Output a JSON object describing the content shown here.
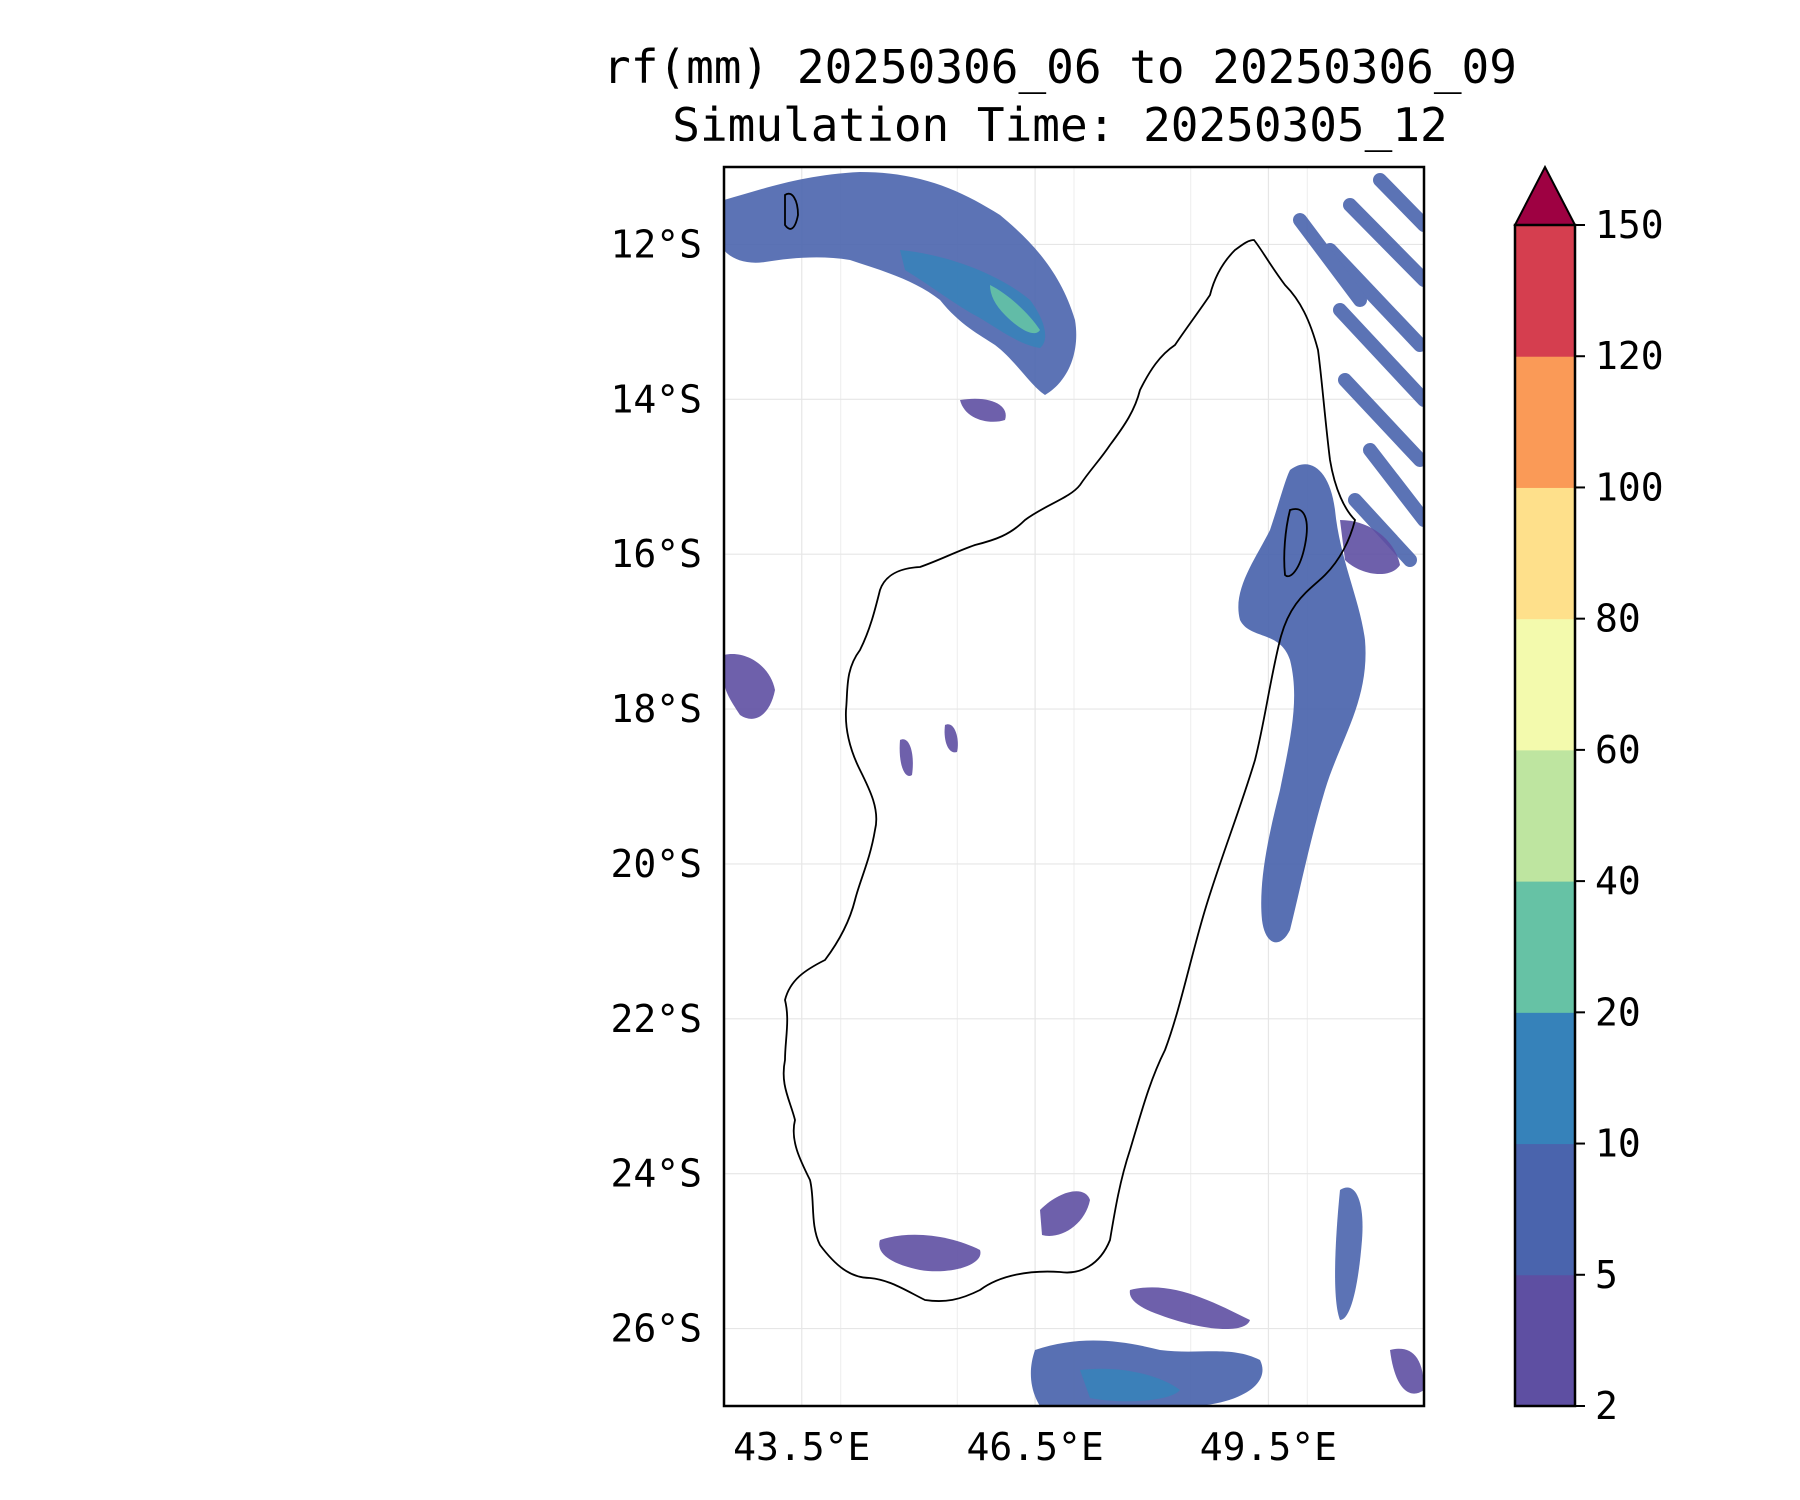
{
  "title": {
    "line1": "rf(mm) 20250306_06 to 20250306_09",
    "line2": "Simulation Time: 20250305_12"
  },
  "map": {
    "lon_range": [
      42.5,
      51.5
    ],
    "lat_range": [
      -27.0,
      -11.0
    ],
    "lat_ticks": [
      "12°S",
      "14°S",
      "16°S",
      "18°S",
      "20°S",
      "22°S",
      "24°S",
      "26°S"
    ],
    "lon_ticks": [
      "43.5°E",
      "46.5°E",
      "49.5°E"
    ],
    "gridlines": true
  },
  "colorbar": {
    "levels": [
      "2",
      "5",
      "10",
      "20",
      "40",
      "60",
      "80",
      "100",
      "120",
      "150"
    ],
    "colors": [
      "#5e4fa2",
      "#4a64ad",
      "#3682ba",
      "#66c2a5",
      "#bee5a0",
      "#f3faad",
      "#fee08b",
      "#fa9a57",
      "#d53e4f"
    ],
    "extend_color": "#9e0142",
    "extend": "max"
  }
}
